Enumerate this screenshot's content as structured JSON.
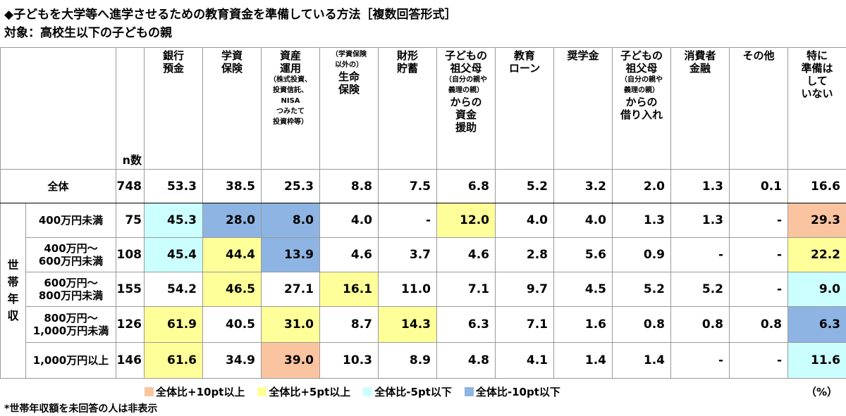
{
  "title": "◆子どもを大学等へ進学させるための教育資金を準備している方法［複数回答形式］",
  "subtitle": "対象：高校生以下の子どもの親",
  "n_header": "n数",
  "columns": [
    {
      "lines": [
        "銀行",
        "預金"
      ]
    },
    {
      "lines": [
        "学資",
        "保険"
      ]
    },
    {
      "lines": [
        "資産",
        "運用"
      ],
      "small_after": [
        "（株式投資、",
        "投資信託、",
        "NISA",
        "つみたて",
        "投資枠等）"
      ]
    },
    {
      "small_before": [
        "（学資保険",
        "以外の）"
      ],
      "lines": [
        "生命",
        "保険"
      ]
    },
    {
      "lines": [
        "財形",
        "貯蓄"
      ]
    },
    {
      "lines": [
        "子どもの",
        "祖父母"
      ],
      "small_mid": [
        "（自分の親や",
        "義理の親）"
      ],
      "lines_after": [
        "からの",
        "資金",
        "援助"
      ]
    },
    {
      "lines": [
        "教育",
        "ローン"
      ]
    },
    {
      "lines": [
        "奨学金"
      ]
    },
    {
      "lines": [
        "子どもの",
        "祖父母"
      ],
      "small_mid": [
        "（自分の親や",
        "義理の親）"
      ],
      "lines_after": [
        "からの",
        "借り入れ"
      ]
    },
    {
      "lines": [
        "消費者",
        "金融"
      ]
    },
    {
      "lines": [
        "その他"
      ]
    },
    {
      "lines": [
        "特に",
        "準備は",
        "して",
        "いない"
      ]
    }
  ],
  "total_row": {
    "label": "全体",
    "n": "748",
    "values": [
      "53.3",
      "38.5",
      "25.3",
      "8.8",
      "7.5",
      "6.8",
      "5.2",
      "3.2",
      "2.0",
      "1.3",
      "0.1",
      "16.6"
    ]
  },
  "group_label": "世帯年収",
  "group_chars": [
    "世",
    "帯",
    "年",
    "収"
  ],
  "rows": [
    {
      "label": [
        "400万円未満"
      ],
      "n": "75",
      "values": [
        "45.3",
        "28.0",
        "8.0",
        "4.0",
        "-",
        "12.0",
        "4.0",
        "4.0",
        "1.3",
        "1.3",
        "-",
        "29.3"
      ],
      "colors": [
        "lb",
        "bl",
        "bl",
        "",
        "",
        "ye",
        "",
        "",
        "",
        "",
        "",
        "or"
      ]
    },
    {
      "label": [
        "400万円～",
        "600万円未満"
      ],
      "n": "108",
      "values": [
        "45.4",
        "44.4",
        "13.9",
        "4.6",
        "3.7",
        "4.6",
        "2.8",
        "5.6",
        "0.9",
        "-",
        "-",
        "22.2"
      ],
      "colors": [
        "lb",
        "ye",
        "bl",
        "",
        "",
        "",
        "",
        "",
        "",
        "",
        "",
        "ye"
      ]
    },
    {
      "label": [
        "600万円～",
        "800万円未満"
      ],
      "n": "155",
      "values": [
        "54.2",
        "46.5",
        "27.1",
        "16.1",
        "11.0",
        "7.1",
        "9.7",
        "4.5",
        "5.2",
        "5.2",
        "-",
        "9.0"
      ],
      "colors": [
        "",
        "ye",
        "",
        "ye",
        "",
        "",
        "",
        "",
        "",
        "",
        "",
        "lb"
      ]
    },
    {
      "label": [
        "800万円～",
        "1,000万円未満"
      ],
      "n": "126",
      "values": [
        "61.9",
        "40.5",
        "31.0",
        "8.7",
        "14.3",
        "6.3",
        "7.1",
        "1.6",
        "0.8",
        "0.8",
        "0.8",
        "6.3"
      ],
      "colors": [
        "ye",
        "",
        "ye",
        "",
        "ye",
        "",
        "",
        "",
        "",
        "",
        "",
        "bl"
      ]
    },
    {
      "label": [
        "1,000万円以上"
      ],
      "n": "146",
      "values": [
        "61.6",
        "34.9",
        "39.0",
        "10.3",
        "8.9",
        "4.8",
        "4.1",
        "1.4",
        "1.4",
        "-",
        "-",
        "11.6"
      ],
      "colors": [
        "ye",
        "",
        "or",
        "",
        "",
        "",
        "",
        "",
        "",
        "",
        "",
        "lb"
      ]
    }
  ],
  "legend": [
    {
      "label": "全体比+10pt以上",
      "color": "#fbc4a0"
    },
    {
      "label": "全体比+5pt以上",
      "color": "#ffff99"
    },
    {
      "label": "全体比-5pt以下",
      "color": "#ccffff"
    },
    {
      "label": "全体比-10pt以下",
      "color": "#8db4e3"
    }
  ],
  "unit": "（%）",
  "note": "*世帯年収額を未回答の人は非表示"
}
